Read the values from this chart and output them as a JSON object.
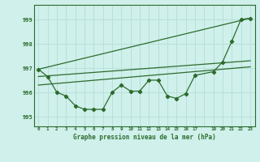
{
  "title": "Graphe pression niveau de la mer (hPa)",
  "bg_color": "#cff0eb",
  "grid_color": "#b8e0da",
  "line_color": "#2d6b2d",
  "xlim": [
    -0.5,
    23.5
  ],
  "ylim": [
    994.6,
    999.6
  ],
  "yticks": [
    995,
    996,
    997,
    998,
    999
  ],
  "xtick_labels": [
    "0",
    "1",
    "2",
    "3",
    "4",
    "5",
    "6",
    "7",
    "8",
    "9",
    "10",
    "11",
    "12",
    "13",
    "14",
    "15",
    "16",
    "17",
    "",
    "19",
    "20",
    "21",
    "22",
    "23"
  ],
  "main_x": [
    0,
    1,
    2,
    3,
    4,
    5,
    6,
    7,
    8,
    9,
    10,
    11,
    12,
    13,
    14,
    15,
    16,
    17,
    19,
    20,
    21,
    22,
    23
  ],
  "main_y": [
    996.95,
    996.65,
    996.0,
    995.85,
    995.45,
    995.3,
    995.3,
    995.3,
    996.0,
    996.3,
    996.05,
    996.05,
    996.5,
    996.5,
    995.85,
    995.75,
    995.95,
    996.7,
    996.85,
    997.25,
    998.1,
    999.0,
    999.05
  ],
  "trend1_x": [
    0,
    23
  ],
  "trend1_y": [
    996.95,
    999.05
  ],
  "trend2_x": [
    0,
    23
  ],
  "trend2_y": [
    996.65,
    997.3
  ],
  "trend3_x": [
    0,
    23
  ],
  "trend3_y": [
    996.3,
    997.05
  ]
}
